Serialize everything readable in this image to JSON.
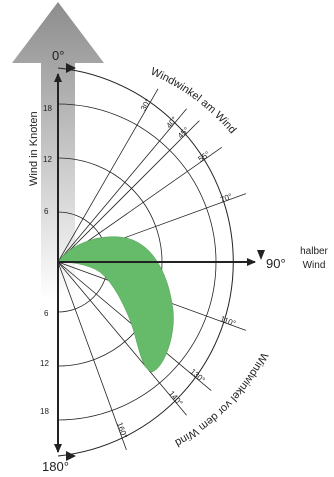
{
  "wind_arrow_label": "Wind in Knoten",
  "top_label": "0°",
  "bottom_label": "180°",
  "right_label": "90°",
  "right_caption": [
    "halber",
    "Wind"
  ],
  "arc_label_upper": "Windwinkel am Wind",
  "arc_label_lower": "Windwinkel vor dem Wind",
  "speed_ticks_upper": [
    "6",
    "12",
    "18"
  ],
  "speed_ticks_lower": [
    "6",
    "12",
    "18"
  ],
  "angle_labels": [
    "30°",
    "40°",
    "45°",
    "55°",
    "70°",
    "110°",
    "130°",
    "140°",
    "160°"
  ],
  "colors": {
    "arrow_fill": "#9a9a9a",
    "polar_area": "#66bb6a",
    "lines": "#222222"
  }
}
